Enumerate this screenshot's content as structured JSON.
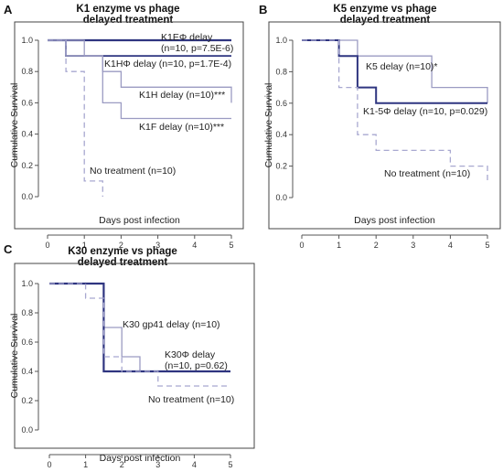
{
  "chart_data": [
    {
      "type": "line",
      "step": true,
      "panel": "A",
      "title": [
        "K1 enzyme vs phage",
        "delayed treatment"
      ],
      "xlabel": "Days post infection",
      "ylabel": "Cumulative Survival",
      "xlim": [
        0,
        5
      ],
      "ylim": [
        0,
        1
      ],
      "xticks": [
        "0",
        "1",
        "2",
        "3",
        "4",
        "5"
      ],
      "yticks": [
        "0.0",
        "0.2",
        "0.4",
        "0.6",
        "0.8",
        "1.0"
      ],
      "grid": false,
      "series": [
        {
          "name": "K1EΦ delay",
          "label_lines": [
            "K1EΦ delay",
            "(n=10, p=7.5E-6)"
          ],
          "color": "#2f3580",
          "dash": "",
          "width": 2.2,
          "x": [
            0,
            5
          ],
          "y": [
            1.0,
            1.0
          ]
        },
        {
          "name": "K1HΦ delay",
          "label_lines": [
            "K1HΦ delay (n=10, p=1.7E-4)"
          ],
          "color": "#2f3580",
          "dash": "",
          "width": 1.8,
          "x": [
            0,
            0.5,
            5
          ],
          "y": [
            1.0,
            0.9,
            0.9
          ]
        },
        {
          "name": "K1H delay",
          "label_lines": [
            "K1H delay (n=10)***"
          ],
          "color": "#9b9bc2",
          "dash": "",
          "width": 1.3,
          "x": [
            0,
            1,
            1.5,
            2,
            5
          ],
          "y": [
            1.0,
            0.9,
            0.8,
            0.7,
            0.6
          ]
        },
        {
          "name": "K1F delay",
          "label_lines": [
            "K1F delay (n=10)***"
          ],
          "color": "#9b9bc2",
          "dash": "",
          "width": 1.3,
          "x": [
            0,
            0.5,
            1.5,
            2,
            5
          ],
          "y": [
            1.0,
            0.9,
            0.6,
            0.5,
            0.5
          ]
        },
        {
          "name": "No treatment",
          "label_lines": [
            "No treatment (n=10)"
          ],
          "color": "#a8a8d0",
          "dash": "6,4",
          "width": 1.3,
          "x": [
            0,
            0.5,
            1,
            1.5
          ],
          "y": [
            1.0,
            0.8,
            0.1,
            0.0
          ]
        }
      ]
    },
    {
      "type": "line",
      "step": true,
      "panel": "B",
      "title": [
        "K5 enzyme vs phage",
        "delayed treatment"
      ],
      "xlabel": "Days post infection",
      "ylabel": "Cumulative Survival",
      "xlim": [
        0,
        5
      ],
      "ylim": [
        0,
        1
      ],
      "xticks": [
        "0",
        "1",
        "2",
        "3",
        "4",
        "5"
      ],
      "yticks": [
        "0.0",
        "0.2",
        "0.4",
        "0.6",
        "0.8",
        "1.0"
      ],
      "grid": false,
      "series": [
        {
          "name": "K5 delay",
          "label_lines": [
            "K5 delay (n=10)*"
          ],
          "color": "#9b9bc2",
          "dash": "",
          "width": 1.3,
          "x": [
            0,
            1.5,
            3.5,
            5
          ],
          "y": [
            1.0,
            0.9,
            0.7,
            0.6
          ]
        },
        {
          "name": "K1-5Φ delay",
          "label_lines": [
            "K1-5Φ delay (n=10, p=0.029)"
          ],
          "color": "#2f3580",
          "dash": "",
          "width": 2.0,
          "x": [
            0,
            1,
            1.5,
            2,
            5
          ],
          "y": [
            1.0,
            0.9,
            0.7,
            0.6,
            0.6
          ]
        },
        {
          "name": "No treatment",
          "label_lines": [
            "No treatment (n=10)"
          ],
          "color": "#a8a8d0",
          "dash": "6,4",
          "width": 1.3,
          "x": [
            0,
            1,
            1.5,
            2,
            3.5,
            4,
            5
          ],
          "y": [
            1.0,
            0.7,
            0.4,
            0.3,
            0.3,
            0.2,
            0.1
          ]
        }
      ]
    },
    {
      "type": "line",
      "step": true,
      "panel": "C",
      "title": [
        "K30 enzyme vs phage",
        "delayed treatment"
      ],
      "xlabel": "Days post infection",
      "ylabel": "Cumulative Survival",
      "xlim": [
        0,
        5
      ],
      "ylim": [
        0,
        1
      ],
      "xticks": [
        "0",
        "1",
        "2",
        "3",
        "4",
        "5"
      ],
      "yticks": [
        "0.0",
        "0.2",
        "0.4",
        "0.6",
        "0.8",
        "1.0"
      ],
      "grid": false,
      "series": [
        {
          "name": "K30 gp41 delay",
          "label_lines": [
            "K30 gp41 delay (n=10)"
          ],
          "color": "#9b9bc2",
          "dash": "",
          "width": 1.3,
          "x": [
            0,
            1.5,
            2,
            2.5,
            5
          ],
          "y": [
            1.0,
            0.7,
            0.5,
            0.4,
            0.4
          ]
        },
        {
          "name": "K30Φ delay",
          "label_lines": [
            "K30Φ delay",
            "(n=10, p=0.62)"
          ],
          "color": "#2f3580",
          "dash": "",
          "width": 2.2,
          "x": [
            0,
            1.5,
            5
          ],
          "y": [
            1.0,
            0.4,
            0.4
          ]
        },
        {
          "name": "No treatment",
          "label_lines": [
            "No treatment (n=10)"
          ],
          "color": "#a8a8d0",
          "dash": "6,4",
          "width": 1.3,
          "x": [
            0,
            1,
            1.5,
            2,
            3,
            5
          ],
          "y": [
            1.0,
            0.9,
            0.5,
            0.4,
            0.3,
            0.3
          ]
        }
      ]
    }
  ]
}
